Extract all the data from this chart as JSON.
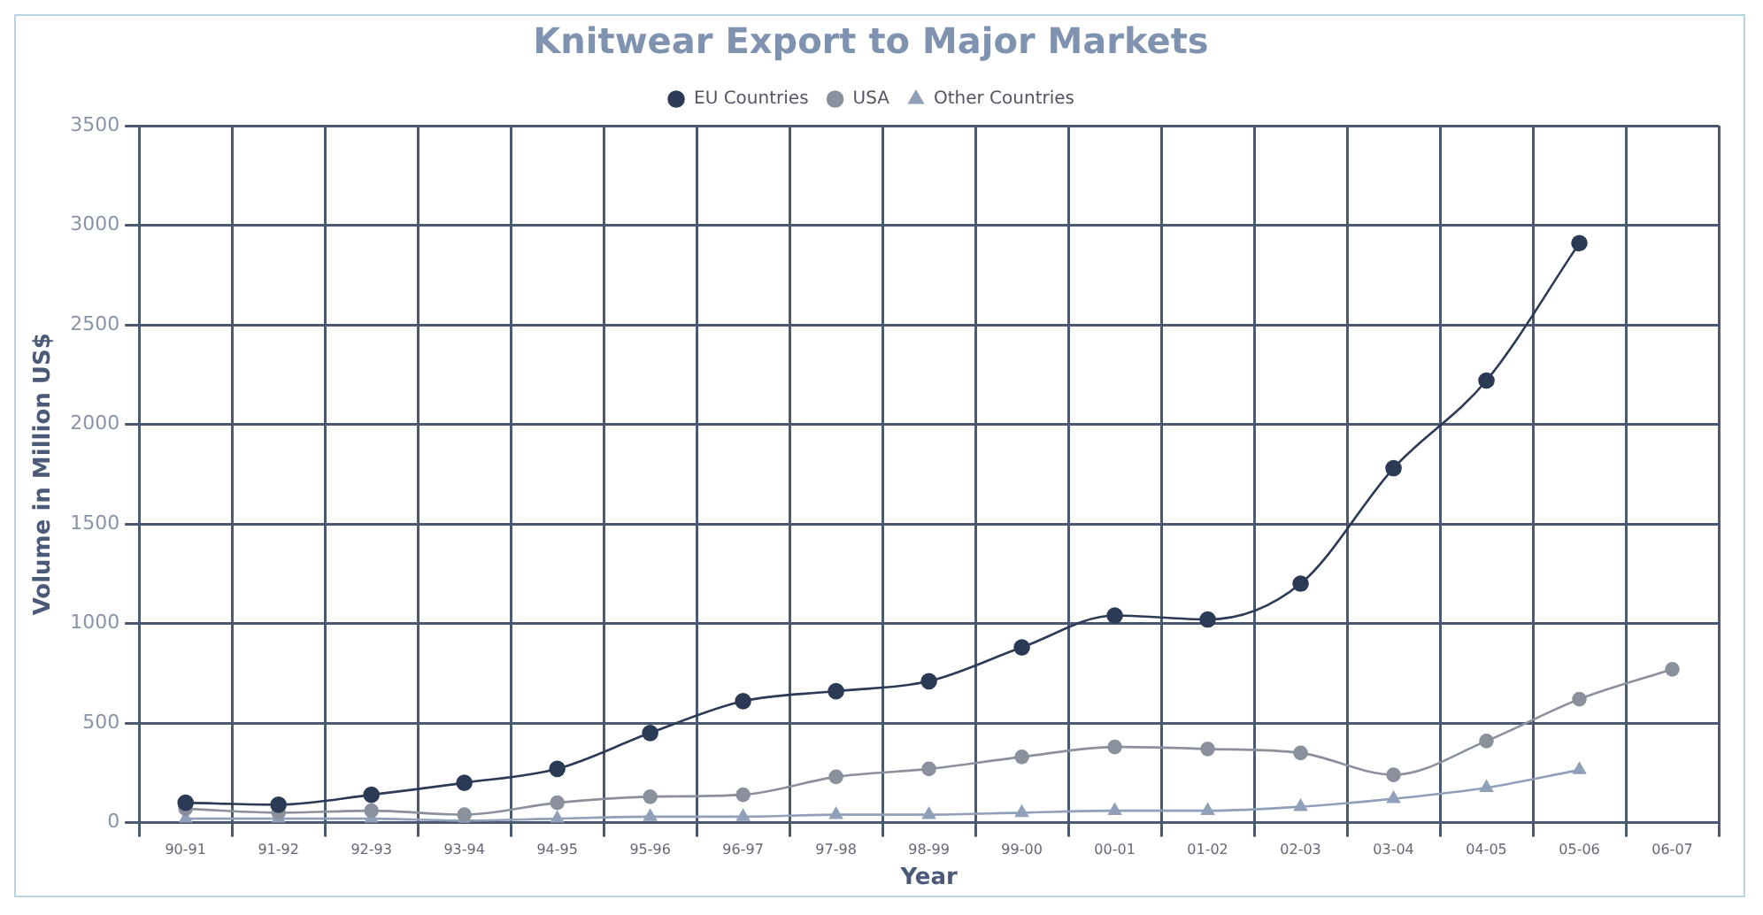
{
  "chart_data": {
    "type": "line",
    "title": "Knitwear Export to Major Markets",
    "xlabel": "Year",
    "ylabel": "Volume in Million US$",
    "categories": [
      "90-91",
      "91-92",
      "92-93",
      "93-94",
      "94-95",
      "95-96",
      "96-97",
      "97-98",
      "98-99",
      "99-00",
      "00-01",
      "01-02",
      "02-03",
      "03-04",
      "04-05",
      "05-06",
      "06-07"
    ],
    "series": [
      {
        "name": "EU Countries",
        "color": "#2b3a55",
        "marker": "circle",
        "values": [
          100,
          90,
          140,
          200,
          270,
          450,
          610,
          660,
          710,
          880,
          1040,
          1020,
          1200,
          1780,
          2220,
          2910,
          null
        ]
      },
      {
        "name": "USA",
        "color": "#8a909c",
        "marker": "circle",
        "values": [
          70,
          50,
          60,
          40,
          100,
          130,
          140,
          230,
          270,
          330,
          380,
          370,
          350,
          240,
          410,
          620,
          770
        ]
      },
      {
        "name": "Other Countries",
        "color": "#8fa0b8",
        "marker": "triangle",
        "values": [
          20,
          20,
          20,
          10,
          20,
          30,
          30,
          40,
          40,
          50,
          60,
          60,
          80,
          120,
          175,
          265,
          null
        ]
      }
    ],
    "ylim": [
      0,
      3500
    ],
    "yticks": [
      0,
      500,
      1000,
      1500,
      2000,
      2500,
      3000,
      3500
    ],
    "grid": true,
    "legend": "top"
  }
}
